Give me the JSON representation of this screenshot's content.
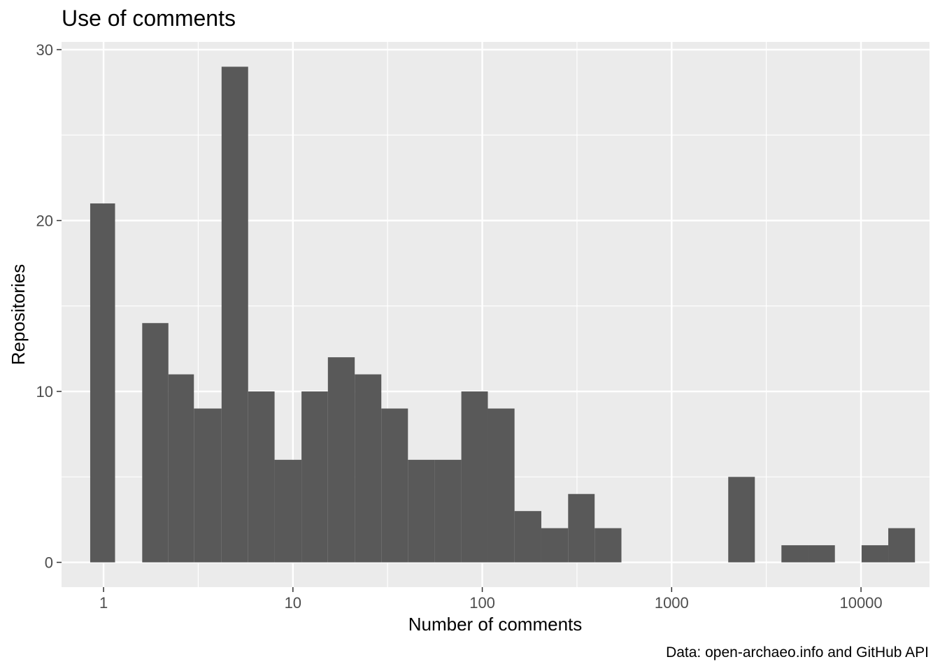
{
  "chart_data": {
    "type": "bar",
    "title": "Use of comments",
    "xlabel": "Number of comments",
    "ylabel": "Repositories",
    "caption": "Data: open-archaeo.info and GitHub API",
    "x_scale": "log10",
    "xlim": [
      0.6,
      23000
    ],
    "ylim": [
      -1.45,
      30.45
    ],
    "x_ticks": [
      {
        "value": 1,
        "label": "1"
      },
      {
        "value": 10,
        "label": "10"
      },
      {
        "value": 100,
        "label": "100"
      },
      {
        "value": 1000,
        "label": "1000"
      },
      {
        "value": 10000,
        "label": "10000"
      }
    ],
    "y_ticks": [
      {
        "value": 0,
        "label": "0"
      },
      {
        "value": 10,
        "label": "10"
      },
      {
        "value": 20,
        "label": "20"
      },
      {
        "value": 30,
        "label": "30"
      }
    ],
    "grid": true,
    "bars": [
      {
        "x0": 0.85,
        "x1": 1.15,
        "count": 21
      },
      {
        "x0": 1.15,
        "x1": 1.6,
        "count": 0
      },
      {
        "x0": 1.6,
        "x1": 2.2,
        "count": 14
      },
      {
        "x0": 2.2,
        "x1": 3.0,
        "count": 11
      },
      {
        "x0": 3.0,
        "x1": 4.2,
        "count": 9
      },
      {
        "x0": 4.2,
        "x1": 5.8,
        "count": 29
      },
      {
        "x0": 5.8,
        "x1": 8.0,
        "count": 10
      },
      {
        "x0": 8.0,
        "x1": 11.1,
        "count": 6
      },
      {
        "x0": 11.1,
        "x1": 15.3,
        "count": 10
      },
      {
        "x0": 15.3,
        "x1": 21.2,
        "count": 12
      },
      {
        "x0": 21.2,
        "x1": 29.3,
        "count": 11
      },
      {
        "x0": 29.3,
        "x1": 40.5,
        "count": 9
      },
      {
        "x0": 40.5,
        "x1": 56.0,
        "count": 6
      },
      {
        "x0": 56.0,
        "x1": 77.5,
        "count": 6
      },
      {
        "x0": 77.5,
        "x1": 107,
        "count": 10
      },
      {
        "x0": 107,
        "x1": 148,
        "count": 9
      },
      {
        "x0": 148,
        "x1": 205,
        "count": 3
      },
      {
        "x0": 205,
        "x1": 284,
        "count": 2
      },
      {
        "x0": 284,
        "x1": 392,
        "count": 4
      },
      {
        "x0": 392,
        "x1": 543,
        "count": 2
      },
      {
        "x0": 543,
        "x1": 750,
        "count": 0
      },
      {
        "x0": 750,
        "x1": 1040,
        "count": 0
      },
      {
        "x0": 1040,
        "x1": 1440,
        "count": 0
      },
      {
        "x0": 1440,
        "x1": 1990,
        "count": 0
      },
      {
        "x0": 1990,
        "x1": 2750,
        "count": 5
      },
      {
        "x0": 2750,
        "x1": 3800,
        "count": 0
      },
      {
        "x0": 3800,
        "x1": 5260,
        "count": 1
      },
      {
        "x0": 5260,
        "x1": 7280,
        "count": 1
      },
      {
        "x0": 7280,
        "x1": 10070,
        "count": 0
      },
      {
        "x0": 10070,
        "x1": 13930,
        "count": 1
      },
      {
        "x0": 13930,
        "x1": 19270,
        "count": 2
      }
    ],
    "colors": {
      "panel": "#ebebeb",
      "grid": "#ffffff",
      "bar": "#595959",
      "tick": "#333333"
    }
  }
}
